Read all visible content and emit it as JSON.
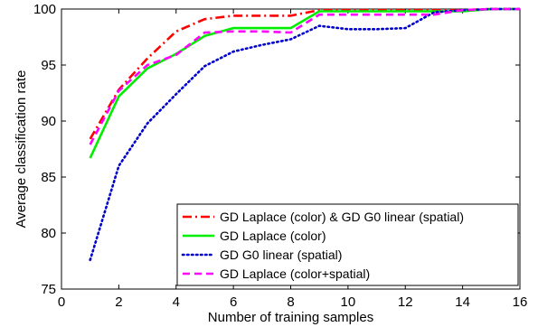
{
  "chart_data": {
    "type": "line",
    "title": "",
    "xlabel": "Number of training samples",
    "ylabel": "Average classification rate",
    "xlim": [
      0,
      16
    ],
    "ylim": [
      75,
      100
    ],
    "xticks": [
      0,
      2,
      4,
      6,
      8,
      10,
      12,
      14,
      16
    ],
    "yticks": [
      75,
      80,
      85,
      90,
      95,
      100
    ],
    "grid": false,
    "legend_position": "bottom-right",
    "series": [
      {
        "name": "GD Laplace (color) & GD G0 linear (spatial)",
        "color": "#ff0000",
        "dash": "dashdot",
        "x": [
          1,
          2,
          3,
          4,
          5,
          6,
          7,
          8,
          9,
          10,
          11,
          12,
          13,
          14,
          15,
          16
        ],
        "values": [
          88.4,
          92.8,
          95.6,
          98.0,
          99.1,
          99.4,
          99.4,
          99.4,
          99.9,
          99.9,
          99.9,
          99.9,
          99.9,
          99.9,
          100,
          100
        ]
      },
      {
        "name": "GD Laplace (color)",
        "color": "#00ee00",
        "dash": "solid",
        "x": [
          1,
          2,
          3,
          4,
          5,
          6,
          7,
          8,
          9,
          10,
          11,
          12,
          13,
          14,
          15,
          16
        ],
        "values": [
          86.7,
          92.2,
          94.7,
          96.0,
          97.6,
          98.3,
          98.3,
          98.3,
          99.8,
          99.8,
          99.8,
          99.8,
          99.8,
          99.8,
          100,
          100
        ]
      },
      {
        "name": "GD G0 linear (spatial)",
        "color": "#0000cc",
        "dash": "dotted",
        "x": [
          1,
          2,
          3,
          4,
          5,
          6,
          7,
          8,
          9,
          10,
          11,
          12,
          13,
          14,
          15,
          16
        ],
        "values": [
          77.6,
          86.0,
          89.8,
          92.4,
          94.9,
          96.2,
          96.8,
          97.3,
          98.5,
          98.2,
          98.2,
          98.3,
          99.7,
          99.9,
          100,
          100
        ]
      },
      {
        "name": "GD Laplace (color+spatial)",
        "color": "#ff00ff",
        "dash": "dashed",
        "x": [
          1,
          2,
          3,
          4,
          5,
          6,
          7,
          8,
          9,
          10,
          11,
          12,
          13,
          14,
          15,
          16
        ],
        "values": [
          87.9,
          92.7,
          95.0,
          95.9,
          97.9,
          98.0,
          98.0,
          97.9,
          99.5,
          99.5,
          99.5,
          99.5,
          99.5,
          99.9,
          100,
          100
        ]
      }
    ]
  }
}
